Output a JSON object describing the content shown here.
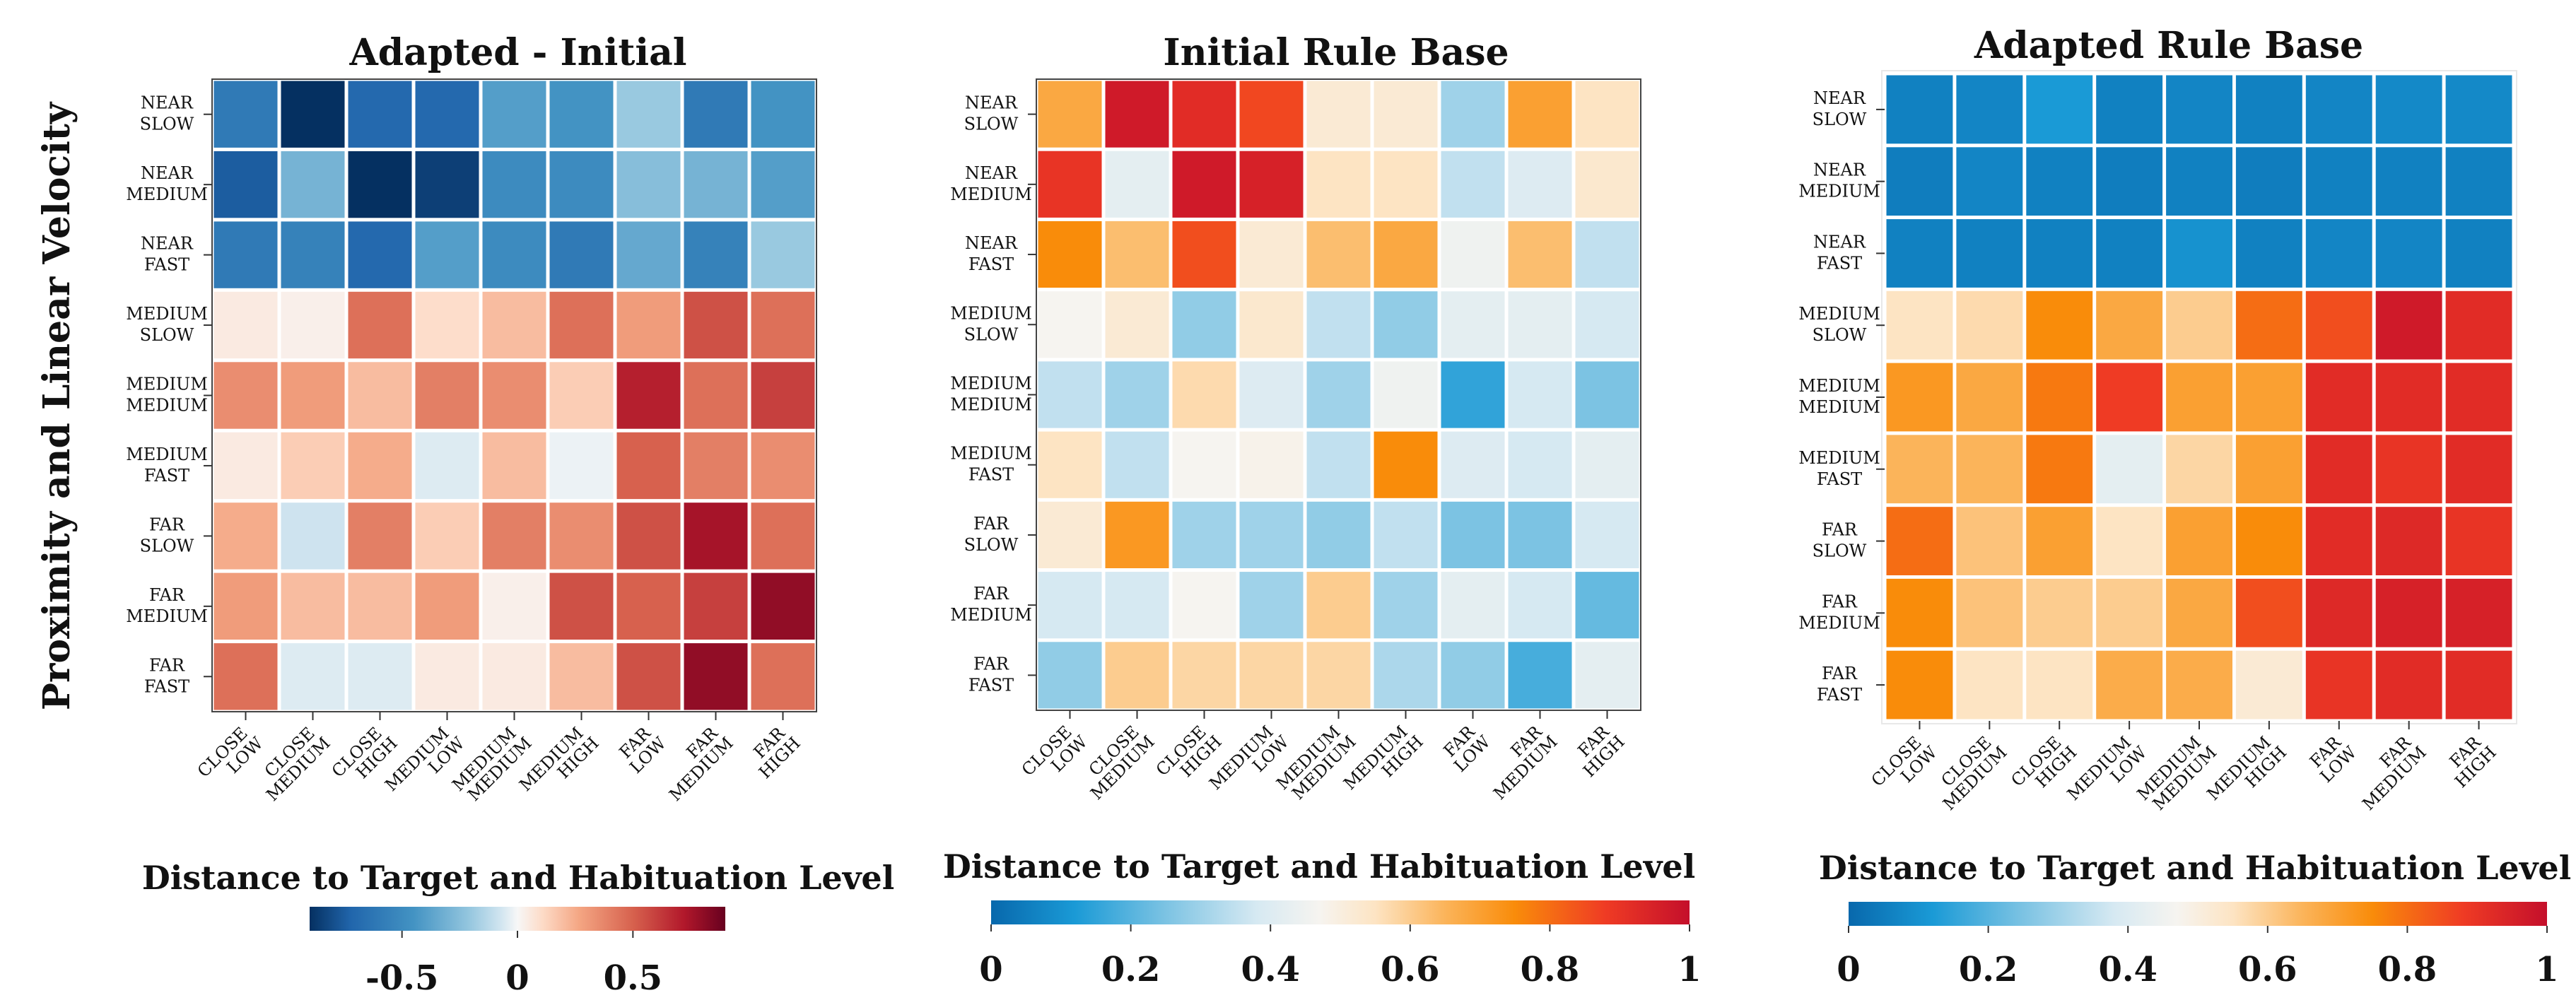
{
  "figure": {
    "ylabel": "Proximity and Linear Velocity",
    "colorbar_title": "Distance to Target and Habituation Level"
  },
  "chart_data": [
    {
      "type": "heatmap",
      "title": "Adapted - Initial",
      "rows": [
        [
          "NEAR",
          "SLOW"
        ],
        [
          "NEAR",
          "MEDIUM"
        ],
        [
          "NEAR",
          "FAST"
        ],
        [
          "MEDIUM",
          "SLOW"
        ],
        [
          "MEDIUM",
          "MEDIUM"
        ],
        [
          "MEDIUM",
          "FAST"
        ],
        [
          "FAR",
          "SLOW"
        ],
        [
          "FAR",
          "MEDIUM"
        ],
        [
          "FAR",
          "FAST"
        ]
      ],
      "columns": [
        [
          "CLOSE",
          "LOW"
        ],
        [
          "CLOSE",
          "MEDIUM"
        ],
        [
          "CLOSE",
          "HIGH"
        ],
        [
          "MEDIUM",
          "LOW"
        ],
        [
          "MEDIUM",
          "MEDIUM"
        ],
        [
          "MEDIUM",
          "HIGH"
        ],
        [
          "FAR",
          "LOW"
        ],
        [
          "FAR",
          "MEDIUM"
        ],
        [
          "FAR",
          "HIGH"
        ]
      ],
      "values": [
        [
          -0.6,
          -0.9,
          -0.7,
          -0.7,
          -0.4,
          -0.45,
          -0.2,
          -0.6,
          -0.45
        ],
        [
          -0.75,
          -0.3,
          -0.9,
          -0.85,
          -0.5,
          -0.5,
          -0.25,
          -0.3,
          -0.4
        ],
        [
          -0.6,
          -0.55,
          -0.7,
          -0.4,
          -0.5,
          -0.6,
          -0.35,
          -0.55,
          -0.2
        ],
        [
          0.05,
          0.03,
          0.45,
          0.1,
          0.2,
          0.45,
          0.3,
          0.55,
          0.45
        ],
        [
          0.35,
          0.3,
          0.2,
          0.4,
          0.35,
          0.15,
          0.7,
          0.45,
          0.6
        ],
        [
          0.05,
          0.15,
          0.25,
          -0.05,
          0.2,
          -0.02,
          0.5,
          0.4,
          0.35
        ],
        [
          0.25,
          -0.08,
          0.4,
          0.15,
          0.4,
          0.35,
          0.55,
          0.75,
          0.45
        ],
        [
          0.3,
          0.2,
          0.2,
          0.3,
          0.03,
          0.55,
          0.5,
          0.6,
          0.8
        ],
        [
          0.45,
          -0.05,
          -0.05,
          0.05,
          0.05,
          0.2,
          0.55,
          0.8,
          0.45
        ]
      ],
      "scale": {
        "min": -0.9,
        "max": 0.9,
        "colormap": "RdBu_r"
      },
      "colorbar_ticks": [
        -0.5,
        0,
        0.5
      ],
      "colorbar_tick_labels": [
        "-0.5",
        "0",
        "0.5"
      ]
    },
    {
      "type": "heatmap",
      "title": "Initial Rule Base",
      "rows": [
        [
          "NEAR",
          "SLOW"
        ],
        [
          "NEAR",
          "MEDIUM"
        ],
        [
          "NEAR",
          "FAST"
        ],
        [
          "MEDIUM",
          "SLOW"
        ],
        [
          "MEDIUM",
          "MEDIUM"
        ],
        [
          "MEDIUM",
          "FAST"
        ],
        [
          "FAR",
          "SLOW"
        ],
        [
          "FAR",
          "MEDIUM"
        ],
        [
          "FAR",
          "FAST"
        ]
      ],
      "columns": [
        [
          "CLOSE",
          "LOW"
        ],
        [
          "CLOSE",
          "MEDIUM"
        ],
        [
          "CLOSE",
          "HIGH"
        ],
        [
          "MEDIUM",
          "LOW"
        ],
        [
          "MEDIUM",
          "MEDIUM"
        ],
        [
          "MEDIUM",
          "HIGH"
        ],
        [
          "FAR",
          "LOW"
        ],
        [
          "FAR",
          "MEDIUM"
        ],
        [
          "FAR",
          "HIGH"
        ]
      ],
      "values": [
        [
          0.68,
          0.97,
          0.92,
          0.86,
          0.52,
          0.52,
          0.3,
          0.7,
          0.55
        ],
        [
          0.9,
          0.42,
          0.97,
          0.95,
          0.55,
          0.55,
          0.35,
          0.4,
          0.53
        ],
        [
          0.75,
          0.63,
          0.85,
          0.52,
          0.63,
          0.68,
          0.45,
          0.63,
          0.35
        ],
        [
          0.47,
          0.52,
          0.28,
          0.53,
          0.35,
          0.28,
          0.42,
          0.42,
          0.38
        ],
        [
          0.35,
          0.3,
          0.57,
          0.4,
          0.3,
          0.45,
          0.15,
          0.38,
          0.25
        ],
        [
          0.55,
          0.35,
          0.47,
          0.48,
          0.35,
          0.75,
          0.4,
          0.38,
          0.42
        ],
        [
          0.52,
          0.72,
          0.3,
          0.3,
          0.28,
          0.35,
          0.25,
          0.25,
          0.38
        ],
        [
          0.38,
          0.38,
          0.47,
          0.3,
          0.6,
          0.3,
          0.42,
          0.38,
          0.22
        ],
        [
          0.28,
          0.6,
          0.58,
          0.58,
          0.58,
          0.32,
          0.28,
          0.18,
          0.42
        ]
      ],
      "scale": {
        "min": 0,
        "max": 1,
        "colormap": "blue-white-orange-red"
      },
      "colorbar_ticks": [
        0,
        0.2,
        0.4,
        0.6,
        0.8,
        1
      ],
      "colorbar_tick_labels": [
        "0",
        "0.2",
        "0.4",
        "0.6",
        "0.8",
        "1"
      ]
    },
    {
      "type": "heatmap",
      "title": "Adapted Rule Base",
      "rows": [
        [
          "NEAR",
          "SLOW"
        ],
        [
          "NEAR",
          "MEDIUM"
        ],
        [
          "NEAR",
          "FAST"
        ],
        [
          "MEDIUM",
          "SLOW"
        ],
        [
          "MEDIUM",
          "MEDIUM"
        ],
        [
          "MEDIUM",
          "FAST"
        ],
        [
          "FAR",
          "SLOW"
        ],
        [
          "FAR",
          "MEDIUM"
        ],
        [
          "FAR",
          "FAST"
        ]
      ],
      "columns": [
        [
          "CLOSE",
          "LOW"
        ],
        [
          "CLOSE",
          "MEDIUM"
        ],
        [
          "CLOSE",
          "HIGH"
        ],
        [
          "MEDIUM",
          "LOW"
        ],
        [
          "MEDIUM",
          "MEDIUM"
        ],
        [
          "MEDIUM",
          "HIGH"
        ],
        [
          "FAR",
          "LOW"
        ],
        [
          "FAR",
          "MEDIUM"
        ],
        [
          "FAR",
          "HIGH"
        ]
      ],
      "values": [
        [
          0.06,
          0.07,
          0.12,
          0.06,
          0.07,
          0.06,
          0.07,
          0.08,
          0.08
        ],
        [
          0.05,
          0.07,
          0.06,
          0.05,
          0.06,
          0.05,
          0.06,
          0.06,
          0.06
        ],
        [
          0.06,
          0.06,
          0.06,
          0.06,
          0.1,
          0.06,
          0.07,
          0.07,
          0.06
        ],
        [
          0.55,
          0.57,
          0.75,
          0.68,
          0.6,
          0.8,
          0.85,
          0.97,
          0.92
        ],
        [
          0.72,
          0.68,
          0.78,
          0.88,
          0.7,
          0.7,
          0.92,
          0.92,
          0.92
        ],
        [
          0.65,
          0.65,
          0.78,
          0.42,
          0.58,
          0.7,
          0.92,
          0.9,
          0.92
        ],
        [
          0.8,
          0.62,
          0.7,
          0.55,
          0.7,
          0.75,
          0.92,
          0.93,
          0.9
        ],
        [
          0.75,
          0.62,
          0.6,
          0.6,
          0.68,
          0.85,
          0.93,
          0.95,
          0.95
        ],
        [
          0.75,
          0.55,
          0.55,
          0.67,
          0.67,
          0.52,
          0.9,
          0.92,
          0.92
        ]
      ],
      "scale": {
        "min": 0,
        "max": 1,
        "colormap": "blue-white-orange-red"
      },
      "colorbar_ticks": [
        0,
        0.2,
        0.4,
        0.6,
        0.8,
        1
      ],
      "colorbar_tick_labels": [
        "0",
        "0.2",
        "0.4",
        "0.6",
        "0.8",
        "1"
      ]
    }
  ]
}
